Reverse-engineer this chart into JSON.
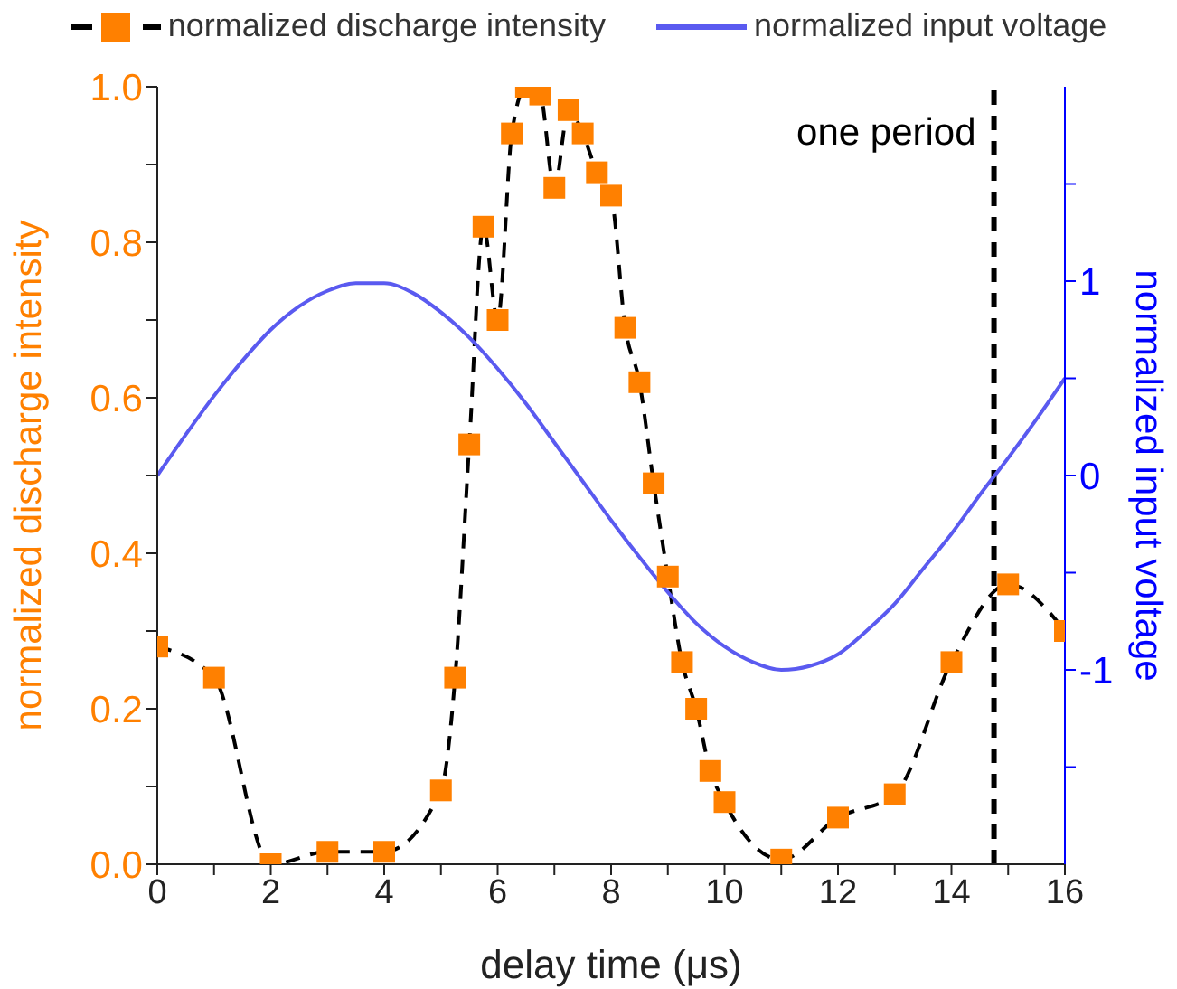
{
  "chart_data": {
    "type": "line",
    "xlabel": "delay time (μs)",
    "ylabel": "normalized discharge intensity",
    "y2label": "normalized input voltage",
    "xlim": [
      0,
      16
    ],
    "xticks": [
      0,
      {
        "value": 1,
        "label": null
      },
      2,
      {
        "value": 3,
        "label": null
      },
      4,
      {
        "value": 5,
        "label": null
      },
      6,
      {
        "value": 7,
        "label": null
      },
      8,
      {
        "value": 9,
        "label": null
      },
      10,
      {
        "value": 11,
        "label": null
      },
      12,
      {
        "value": 13,
        "label": null
      },
      14,
      {
        "value": 15,
        "label": null
      },
      16
    ],
    "ylim": [
      0,
      1
    ],
    "yticks": [
      {
        "value": 0,
        "label": "0.0"
      },
      {
        "value": 0.1,
        "label": null
      },
      0.2,
      {
        "value": 0.3,
        "label": null
      },
      0.4,
      {
        "value": 0.5,
        "label": null
      },
      0.6,
      {
        "value": 0.7,
        "label": null
      },
      0.8,
      {
        "value": 0.9,
        "label": null
      },
      {
        "value": 1,
        "label": "1.0"
      }
    ],
    "y2lim": [
      -2,
      2
    ],
    "y2ticks": [
      {
        "value": -1.5,
        "label": null
      },
      -1,
      {
        "value": -0.5,
        "label": null
      },
      0,
      {
        "value": 0.5,
        "label": null
      },
      1,
      {
        "value": 1.5,
        "label": null
      }
    ],
    "legend": "top",
    "series": [
      {
        "name": "normalized discharge intensity",
        "color": "#ff8000",
        "marker": "square",
        "line_style": "dashed",
        "x": [
          0,
          1,
          2,
          3,
          4,
          5,
          5.25,
          5.5,
          5.75,
          6,
          6.25,
          6.5,
          6.75,
          7,
          7.25,
          7.5,
          7.75,
          8,
          8.25,
          8.5,
          8.75,
          9,
          9.25,
          9.5,
          9.75,
          10,
          11,
          12,
          13,
          14,
          15,
          16
        ],
        "values": [
          0.28,
          0.24,
          0.0,
          0.016,
          0.016,
          0.095,
          0.24,
          0.54,
          0.82,
          0.7,
          0.94,
          1.0,
          0.99,
          0.87,
          0.97,
          0.94,
          0.89,
          0.86,
          0.69,
          0.62,
          0.49,
          0.37,
          0.26,
          0.2,
          0.12,
          0.08,
          0.006,
          0.06,
          0.09,
          0.26,
          0.36,
          0.3
        ]
      },
      {
        "name": "normalized input voltage",
        "color": "#5a5af0",
        "axis": "y2",
        "marker": "none",
        "line_style": "solid",
        "x": [
          0,
          0.5,
          1,
          1.5,
          2,
          2.5,
          3,
          3.5,
          4,
          4.5,
          5,
          5.5,
          6,
          6.5,
          7,
          7.5,
          8,
          8.5,
          9,
          9.5,
          10,
          10.5,
          11,
          11.5,
          12,
          12.5,
          13,
          13.5,
          14,
          14.5,
          15,
          15.5,
          16
        ],
        "values": [
          0,
          0.21,
          0.41,
          0.59,
          0.75,
          0.87,
          0.95,
          0.99,
          0.99,
          0.94,
          0.84,
          0.71,
          0.55,
          0.37,
          0.17,
          -0.03,
          -0.23,
          -0.42,
          -0.6,
          -0.76,
          -0.88,
          -0.96,
          -1.0,
          -0.98,
          -0.92,
          -0.8,
          -0.66,
          -0.48,
          -0.3,
          -0.1,
          0.09,
          0.29,
          0.5
        ]
      }
    ],
    "ref_lines": [
      {
        "axis": "x",
        "value": 14.75,
        "label": "one period",
        "color": "#000000",
        "line_style": "dashed"
      }
    ]
  }
}
